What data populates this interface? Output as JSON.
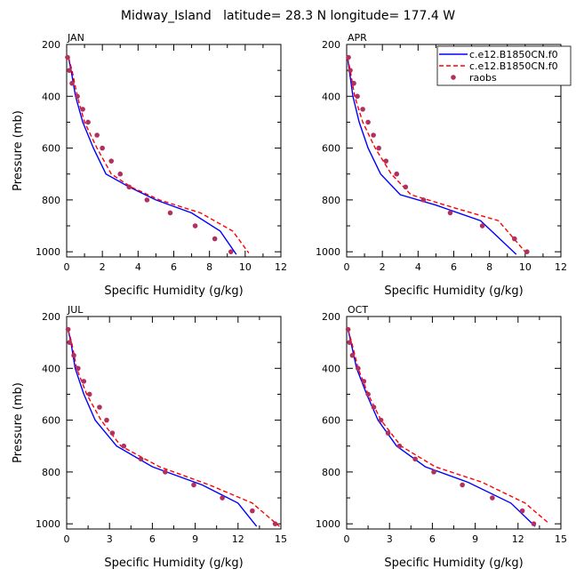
{
  "title": "Midway_Island   latitude= 28.3 N longitude= 177.4 W",
  "legend": {
    "items": [
      {
        "label": "c.e12.B1850CN.f0",
        "style": "solid",
        "color": "#0000ff"
      },
      {
        "label": "c.e12.B1850CN.f0",
        "style": "dashed",
        "color": "#ff0000"
      },
      {
        "label": "raobs",
        "style": "dot",
        "color": "#b03060"
      }
    ]
  },
  "chart_data": [
    {
      "type": "line",
      "title": "JAN",
      "xlabel": "Specific Humidity (g/kg)",
      "ylabel": "Pressure (mb)",
      "xlim": [
        0,
        12
      ],
      "ylim": [
        200,
        1020
      ],
      "xticks": [
        "0",
        "2",
        "4",
        "6",
        "8",
        "10",
        "12"
      ],
      "yticks": [
        "200",
        "400",
        "600",
        "800",
        "1000"
      ],
      "series": [
        {
          "name": "c.e12.B1850CN.f0",
          "style": "solid",
          "color": "#0000ff",
          "x": [
            0.1,
            0.25,
            0.5,
            0.9,
            1.5,
            2.2,
            3.5,
            5.0,
            7.0,
            8.6,
            9.5
          ],
          "y": [
            250,
            300,
            400,
            500,
            600,
            700,
            750,
            800,
            850,
            920,
            1010
          ]
        },
        {
          "name": "c.e12.B1850CN.f0",
          "style": "dashed",
          "color": "#ff0000",
          "x": [
            0.1,
            0.3,
            0.6,
            1.0,
            1.7,
            2.5,
            3.6,
            5.2,
            7.5,
            9.3,
            10.2
          ],
          "y": [
            250,
            300,
            400,
            500,
            600,
            700,
            750,
            800,
            850,
            920,
            1005
          ]
        },
        {
          "name": "raobs",
          "style": "dot",
          "color": "#b03060",
          "x": [
            0.05,
            0.15,
            0.3,
            0.6,
            0.9,
            1.2,
            1.7,
            2.0,
            2.5,
            3.0,
            3.5,
            4.5,
            5.8,
            7.2,
            8.3,
            9.2
          ],
          "y": [
            250,
            300,
            350,
            400,
            450,
            500,
            550,
            600,
            650,
            700,
            750,
            800,
            850,
            900,
            950,
            1000
          ]
        }
      ]
    },
    {
      "type": "line",
      "title": "APR",
      "xlabel": "Specific Humidity (g/kg)",
      "ylabel": "",
      "xlim": [
        0,
        12
      ],
      "ylim": [
        200,
        1020
      ],
      "xticks": [
        "0",
        "2",
        "4",
        "6",
        "8",
        "10",
        "12"
      ],
      "yticks": [
        "200",
        "400",
        "600",
        "800",
        "1000"
      ],
      "series": [
        {
          "name": "c.e12.B1850CN.f0",
          "style": "solid",
          "color": "#0000ff",
          "x": [
            0.05,
            0.15,
            0.35,
            0.7,
            1.2,
            1.9,
            3.0,
            5.0,
            7.5,
            9.5
          ],
          "y": [
            250,
            300,
            400,
            500,
            600,
            700,
            780,
            820,
            880,
            1010
          ]
        },
        {
          "name": "c.e12.B1850CN.f0",
          "style": "dashed",
          "color": "#ff0000",
          "x": [
            0.05,
            0.2,
            0.45,
            0.9,
            1.6,
            2.5,
            3.6,
            6.0,
            8.5,
            10.0
          ],
          "y": [
            250,
            300,
            400,
            500,
            600,
            700,
            780,
            830,
            880,
            1000
          ]
        },
        {
          "name": "raobs",
          "style": "dot",
          "color": "#b03060",
          "x": [
            0.1,
            0.2,
            0.4,
            0.6,
            0.9,
            1.2,
            1.5,
            1.8,
            2.2,
            2.8,
            3.3,
            4.3,
            5.8,
            7.6,
            9.4,
            10.1
          ],
          "y": [
            250,
            300,
            350,
            400,
            450,
            500,
            550,
            600,
            650,
            700,
            750,
            800,
            850,
            900,
            950,
            1000
          ]
        }
      ]
    },
    {
      "type": "line",
      "title": "JUL",
      "xlabel": "Specific Humidity (g/kg)",
      "ylabel": "Pressure (mb)",
      "xlim": [
        0,
        15
      ],
      "ylim": [
        200,
        1020
      ],
      "xticks": [
        "0",
        "3",
        "6",
        "9",
        "12",
        "15"
      ],
      "yticks": [
        "200",
        "400",
        "600",
        "800",
        "1000"
      ],
      "series": [
        {
          "name": "c.e12.B1850CN.f0",
          "style": "solid",
          "color": "#0000ff",
          "x": [
            0.1,
            0.3,
            0.6,
            1.2,
            2.0,
            3.5,
            6.0,
            9.5,
            12.0,
            13.3
          ],
          "y": [
            250,
            300,
            400,
            500,
            600,
            700,
            780,
            850,
            920,
            1010
          ]
        },
        {
          "name": "c.e12.B1850CN.f0",
          "style": "dashed",
          "color": "#ff0000",
          "x": [
            0.1,
            0.35,
            0.7,
            1.4,
            2.4,
            3.8,
            6.5,
            10.0,
            13.0,
            14.9
          ],
          "y": [
            250,
            300,
            400,
            500,
            600,
            700,
            780,
            850,
            920,
            1010
          ]
        },
        {
          "name": "raobs",
          "style": "dot",
          "color": "#b03060",
          "x": [
            0.1,
            0.2,
            0.5,
            0.8,
            1.2,
            1.6,
            2.3,
            2.8,
            3.2,
            4.0,
            5.2,
            6.9,
            8.9,
            10.9,
            13.0,
            14.6
          ],
          "y": [
            250,
            300,
            350,
            400,
            450,
            500,
            550,
            600,
            650,
            700,
            750,
            800,
            850,
            900,
            950,
            1000
          ]
        }
      ]
    },
    {
      "type": "line",
      "title": "OCT",
      "xlabel": "Specific Humidity (g/kg)",
      "ylabel": "",
      "xlim": [
        0,
        15
      ],
      "ylim": [
        200,
        1020
      ],
      "xticks": [
        "0",
        "3",
        "6",
        "9",
        "12",
        "15"
      ],
      "yticks": [
        "200",
        "400",
        "600",
        "800",
        "1000"
      ],
      "series": [
        {
          "name": "c.e12.B1850CN.f0",
          "style": "solid",
          "color": "#0000ff",
          "x": [
            0.1,
            0.3,
            0.7,
            1.4,
            2.2,
            3.5,
            5.5,
            8.5,
            11.5,
            13.2
          ],
          "y": [
            250,
            300,
            400,
            500,
            600,
            700,
            780,
            840,
            920,
            1010
          ]
        },
        {
          "name": "c.e12.B1850CN.f0",
          "style": "dashed",
          "color": "#ff0000",
          "x": [
            0.1,
            0.35,
            0.8,
            1.5,
            2.4,
            3.8,
            6.2,
            9.5,
            12.5,
            14.2
          ],
          "y": [
            250,
            300,
            400,
            500,
            600,
            700,
            780,
            840,
            920,
            1000
          ]
        },
        {
          "name": "raobs",
          "style": "dot",
          "color": "#b03060",
          "x": [
            0.1,
            0.2,
            0.4,
            0.8,
            1.2,
            1.5,
            1.9,
            2.4,
            2.9,
            3.7,
            4.8,
            6.1,
            8.1,
            10.2,
            12.3,
            13.1
          ],
          "y": [
            250,
            300,
            350,
            400,
            450,
            500,
            550,
            600,
            650,
            700,
            750,
            800,
            850,
            900,
            950,
            1000
          ]
        }
      ]
    }
  ]
}
